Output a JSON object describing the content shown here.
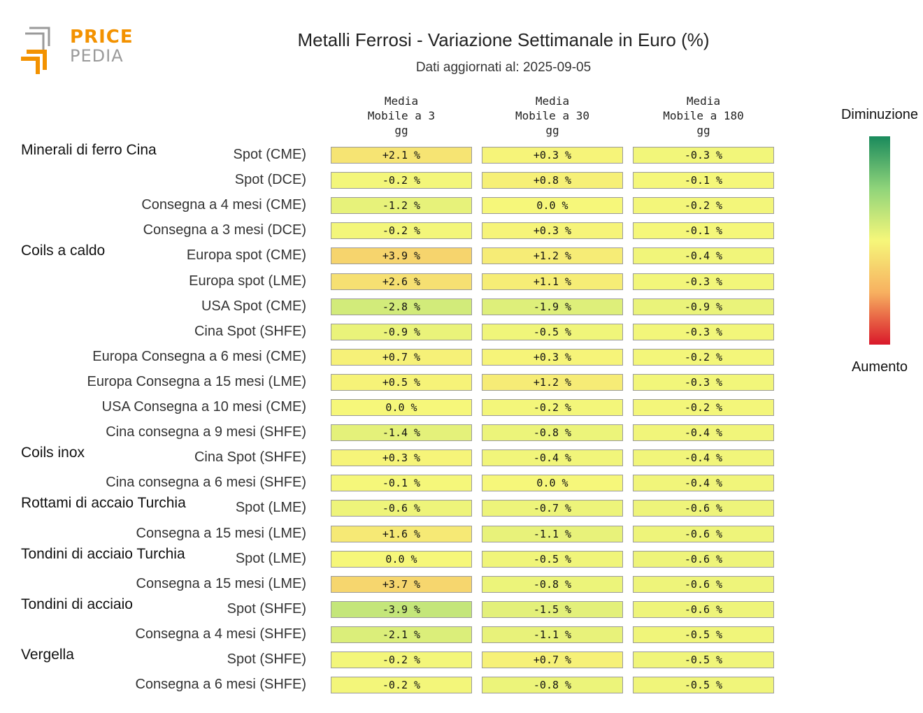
{
  "logo": {
    "price": "PRICE",
    "pedia": "PEDIA"
  },
  "title": "Metalli Ferrosi - Variazione Settimanale in Euro (%)",
  "subtitle": "Dati aggiornati al: 2025-09-05",
  "columns": [
    "Media\nMobile a 3\ngg",
    "Media\nMobile a 30\ngg",
    "Media\nMobile a 180\ngg"
  ],
  "legend": {
    "top": "Diminuzione",
    "bottom": "Aumento"
  },
  "colors": {
    "green": "#1a8a5c",
    "yellow": "#f6f77a",
    "orange": "#f7b060",
    "red": "#d9182a"
  },
  "chart_data": {
    "type": "heatmap",
    "title": "Metalli Ferrosi - Variazione Settimanale in Euro (%)",
    "columns": [
      "Media Mobile a 3 gg",
      "Media Mobile a 30 gg",
      "Media Mobile a 180 gg"
    ],
    "rows": [
      {
        "group": "Minerali di ferro Cina",
        "label": "Spot (CME)",
        "values": [
          2.1,
          0.3,
          -0.3
        ],
        "texts": [
          "+2.1 %",
          "+0.3 %",
          "-0.3 %"
        ]
      },
      {
        "group": "",
        "label": "Spot (DCE)",
        "values": [
          -0.2,
          0.8,
          -0.1
        ],
        "texts": [
          "-0.2 %",
          "+0.8 %",
          "-0.1 %"
        ]
      },
      {
        "group": "",
        "label": "Consegna a 4 mesi (CME)",
        "values": [
          -1.2,
          0.0,
          -0.2
        ],
        "texts": [
          "-1.2 %",
          "0.0 %",
          "-0.2 %"
        ]
      },
      {
        "group": "",
        "label": "Consegna a 3 mesi (DCE)",
        "values": [
          -0.2,
          0.3,
          -0.1
        ],
        "texts": [
          "-0.2 %",
          "+0.3 %",
          "-0.1 %"
        ]
      },
      {
        "group": "Coils a caldo",
        "label": "Europa spot (CME)",
        "values": [
          3.9,
          1.2,
          -0.4
        ],
        "texts": [
          "+3.9 %",
          "+1.2 %",
          "-0.4 %"
        ]
      },
      {
        "group": "",
        "label": "Europa spot (LME)",
        "values": [
          2.6,
          1.1,
          -0.3
        ],
        "texts": [
          "+2.6 %",
          "+1.1 %",
          "-0.3 %"
        ]
      },
      {
        "group": "",
        "label": "USA Spot (CME)",
        "values": [
          -2.8,
          -1.9,
          -0.9
        ],
        "texts": [
          "-2.8 %",
          "-1.9 %",
          "-0.9 %"
        ]
      },
      {
        "group": "",
        "label": "Cina Spot (SHFE)",
        "values": [
          -0.9,
          -0.5,
          -0.3
        ],
        "texts": [
          "-0.9 %",
          "-0.5 %",
          "-0.3 %"
        ]
      },
      {
        "group": "",
        "label": "Europa Consegna a 6 mesi (CME)",
        "values": [
          0.7,
          0.3,
          -0.2
        ],
        "texts": [
          "+0.7 %",
          "+0.3 %",
          "-0.2 %"
        ]
      },
      {
        "group": "",
        "label": "Europa Consegna a 15 mesi (LME)",
        "values": [
          0.5,
          1.2,
          -0.3
        ],
        "texts": [
          "+0.5 %",
          "+1.2 %",
          "-0.3 %"
        ]
      },
      {
        "group": "",
        "label": "USA Consegna a 10 mesi (CME)",
        "values": [
          0.0,
          -0.2,
          -0.2
        ],
        "texts": [
          "0.0 %",
          "-0.2 %",
          "-0.2 %"
        ]
      },
      {
        "group": "",
        "label": "Cina consegna a 9 mesi (SHFE)",
        "values": [
          -1.4,
          -0.8,
          -0.4
        ],
        "texts": [
          "-1.4 %",
          "-0.8 %",
          "-0.4 %"
        ]
      },
      {
        "group": "Coils inox",
        "label": "Cina Spot (SHFE)",
        "values": [
          0.3,
          -0.4,
          -0.4
        ],
        "texts": [
          "+0.3 %",
          "-0.4 %",
          "-0.4 %"
        ]
      },
      {
        "group": "",
        "label": "Cina consegna a 6 mesi (SHFE)",
        "values": [
          -0.1,
          0.0,
          -0.4
        ],
        "texts": [
          "-0.1 %",
          "0.0 %",
          "-0.4 %"
        ]
      },
      {
        "group": "Rottami di accaio Turchia",
        "label": "Spot (LME)",
        "values": [
          -0.6,
          -0.7,
          -0.6
        ],
        "texts": [
          "-0.6 %",
          "-0.7 %",
          "-0.6 %"
        ]
      },
      {
        "group": "",
        "label": "Consegna a 15 mesi (LME)",
        "values": [
          1.6,
          -1.1,
          -0.6
        ],
        "texts": [
          "+1.6 %",
          "-1.1 %",
          "-0.6 %"
        ]
      },
      {
        "group": "Tondini di acciaio Turchia",
        "label": "Spot (LME)",
        "values": [
          0.0,
          -0.5,
          -0.6
        ],
        "texts": [
          "0.0 %",
          "-0.5 %",
          "-0.6 %"
        ]
      },
      {
        "group": "",
        "label": "Consegna a 15 mesi (LME)",
        "values": [
          3.7,
          -0.8,
          -0.6
        ],
        "texts": [
          "+3.7 %",
          "-0.8 %",
          "-0.6 %"
        ]
      },
      {
        "group": "Tondini di acciaio",
        "label": "Spot (SHFE)",
        "values": [
          -3.9,
          -1.5,
          -0.6
        ],
        "texts": [
          "-3.9 %",
          "-1.5 %",
          "-0.6 %"
        ]
      },
      {
        "group": "",
        "label": "Consegna a 4 mesi (SHFE)",
        "values": [
          -2.1,
          -1.1,
          -0.5
        ],
        "texts": [
          "-2.1 %",
          "-1.1 %",
          "-0.5 %"
        ]
      },
      {
        "group": "Vergella",
        "label": "Spot (SHFE)",
        "values": [
          -0.2,
          0.7,
          -0.5
        ],
        "texts": [
          "-0.2 %",
          "+0.7 %",
          "-0.5 %"
        ]
      },
      {
        "group": "",
        "label": "Consegna a 6 mesi (SHFE)",
        "values": [
          -0.2,
          -0.8,
          -0.5
        ],
        "texts": [
          "-0.2 %",
          "-0.8 %",
          "-0.5 %"
        ]
      }
    ],
    "color_scale": {
      "min": -10,
      "max": 10,
      "negative": "Diminuzione",
      "positive": "Aumento"
    }
  }
}
